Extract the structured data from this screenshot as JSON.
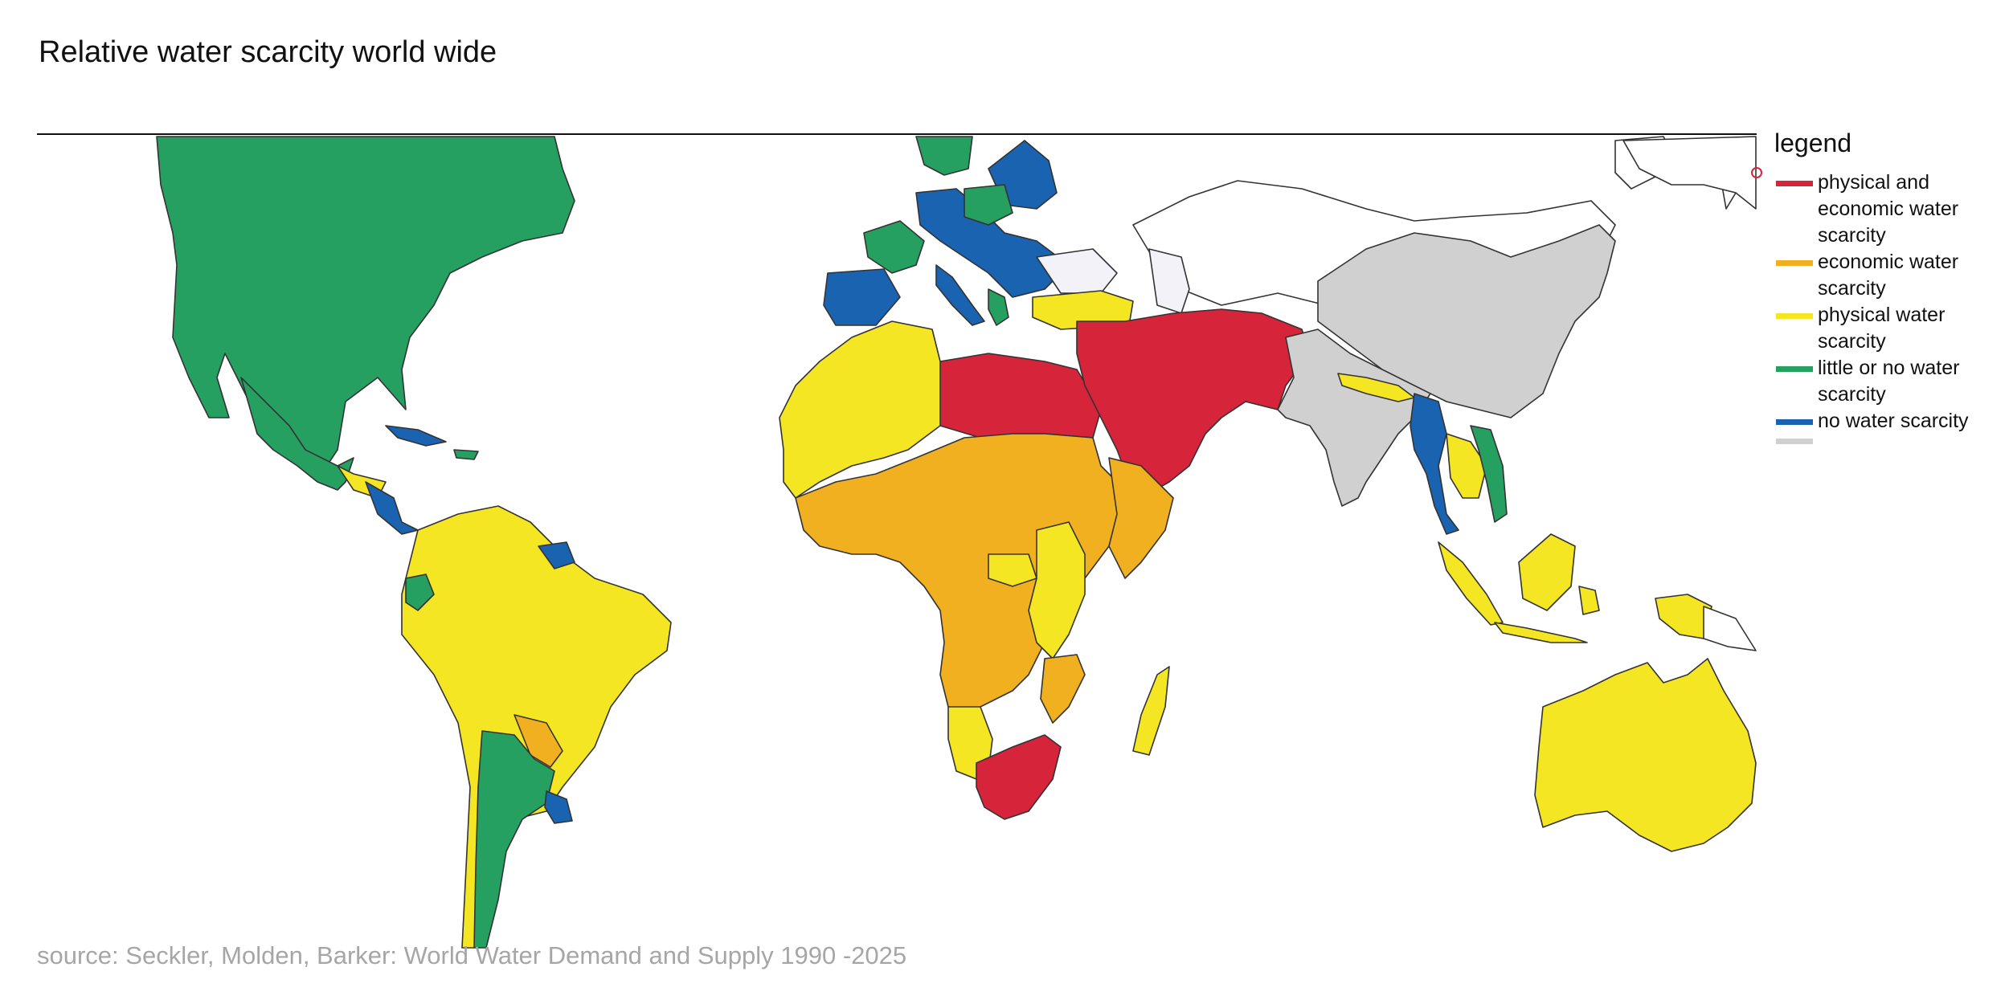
{
  "title": "Relative water scarcity world wide",
  "legend": {
    "title": "legend",
    "items": [
      {
        "label": "physical and economic water scarcity",
        "color": "#d6243a"
      },
      {
        "label": "economic water scarcity",
        "color": "#f0b020"
      },
      {
        "label": "physical water scarcity",
        "color": "#f5e623"
      },
      {
        "label": "little or no water scarcity",
        "color": "#26a060"
      },
      {
        "label": "no water scarcity",
        "color": "#1a63b0"
      }
    ],
    "extra_swatch_color": "#d0d0d0"
  },
  "source": "source: Seckler, Molden, Barker: World Water Demand and Supply 1990 -2025",
  "colors": {
    "red": "#d6243a",
    "orange": "#f0b020",
    "yellow": "#f5e623",
    "green": "#26a060",
    "blue": "#1a63b0",
    "grey": "#d0d0d0",
    "white": "#ffffff",
    "border": "#333333"
  }
}
